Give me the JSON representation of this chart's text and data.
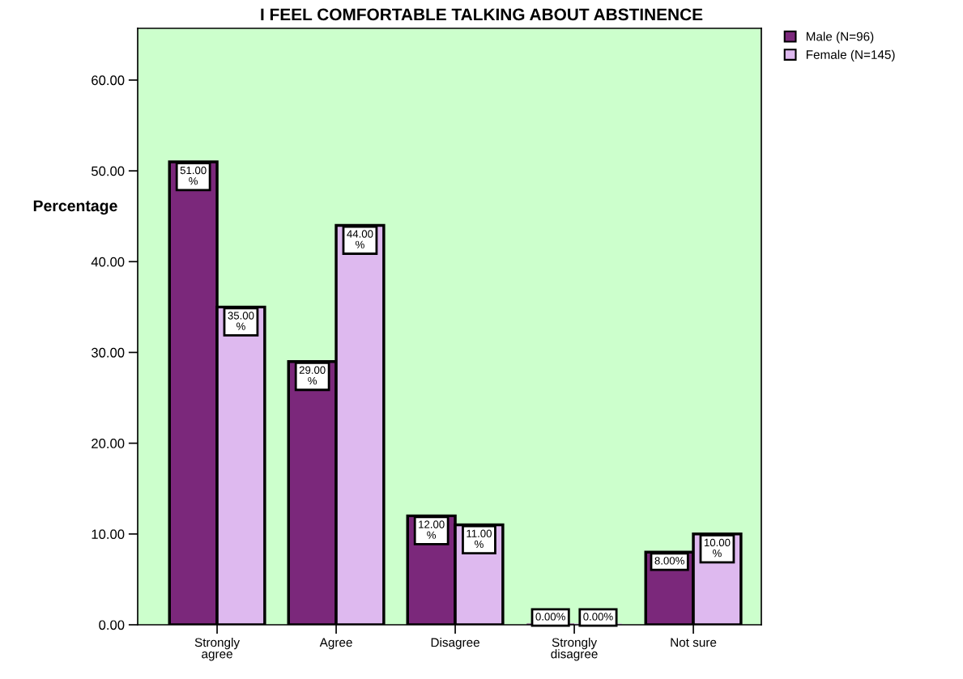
{
  "chart_data": {
    "type": "bar",
    "title": "I FEEL COMFORTABLE TALKING ABOUT ABSTINENCE",
    "ylabel": "Percentage",
    "categories": [
      "Strongly\nagree",
      "Agree",
      "Disagree",
      "Strongly\ndisagree",
      "Not sure"
    ],
    "series": [
      {
        "name": "Male (N=96)",
        "color": "#7b287b",
        "values": [
          51,
          29,
          12,
          0,
          8
        ],
        "value_labels": [
          "51.00\n%",
          "29.00\n%",
          "12.00\n%",
          "0.00%",
          "8.00%"
        ]
      },
      {
        "name": "Female (N=145)",
        "color": "#deb9ef",
        "values": [
          35,
          44,
          11,
          0,
          10
        ],
        "value_labels": [
          "35.00\n%",
          "44.00\n%",
          "11.00\n%",
          "0.00%",
          "10.00\n%"
        ]
      }
    ],
    "ylim": [
      0,
      65.7
    ],
    "yticks": [
      {
        "value": 0,
        "label": "0.00"
      },
      {
        "value": 10,
        "label": "10.00"
      },
      {
        "value": 20,
        "label": "20.00"
      },
      {
        "value": 30,
        "label": "30.00"
      },
      {
        "value": 40,
        "label": "40.00"
      },
      {
        "value": 50,
        "label": "50.00"
      },
      {
        "value": 60,
        "label": "60.00"
      }
    ],
    "legend": "top right",
    "grid": false
  }
}
